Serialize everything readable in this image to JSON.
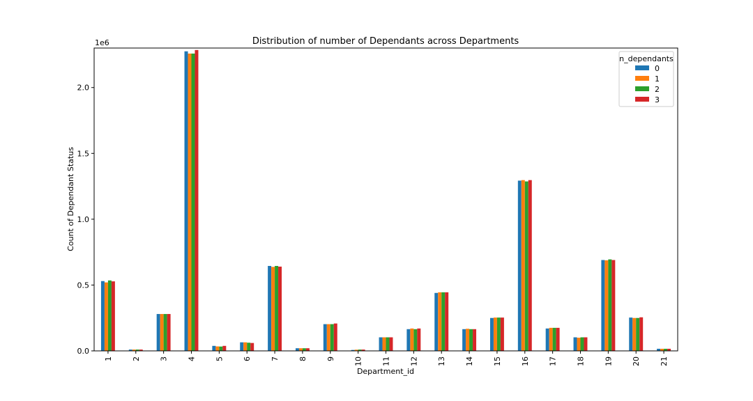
{
  "chart_data": {
    "type": "bar",
    "title": "Distribution of number of Dependants across Departments",
    "xlabel": "Department_id",
    "ylabel": "Count of Dependant Status",
    "y_scale_label": "1e6",
    "ylim": [
      0,
      2.3
    ],
    "yticks": [
      "0.0",
      "0.5",
      "1.0",
      "1.5",
      "2.0"
    ],
    "grid": false,
    "legend_position": "top-right",
    "legend_title": "n_dependants",
    "categories": [
      "1",
      "2",
      "3",
      "4",
      "5",
      "6",
      "7",
      "8",
      "9",
      "10",
      "11",
      "12",
      "13",
      "14",
      "15",
      "16",
      "17",
      "18",
      "19",
      "20",
      "21"
    ],
    "colors": [
      "#1f77b4",
      "#ff7f0e",
      "#2ca02c",
      "#d62728"
    ],
    "series": [
      {
        "name": "0",
        "values": [
          0.53,
          0.01,
          0.28,
          2.275,
          0.038,
          0.065,
          0.645,
          0.02,
          0.203,
          0.007,
          0.103,
          0.165,
          0.44,
          0.165,
          0.25,
          1.293,
          0.17,
          0.103,
          0.69,
          0.253,
          0.016
        ]
      },
      {
        "name": "1",
        "values": [
          0.52,
          0.01,
          0.28,
          2.258,
          0.034,
          0.065,
          0.638,
          0.02,
          0.203,
          0.009,
          0.103,
          0.17,
          0.445,
          0.168,
          0.253,
          1.297,
          0.175,
          0.1,
          0.688,
          0.25,
          0.016
        ]
      },
      {
        "name": "2",
        "values": [
          0.535,
          0.01,
          0.28,
          2.258,
          0.033,
          0.062,
          0.645,
          0.02,
          0.203,
          0.01,
          0.103,
          0.165,
          0.445,
          0.165,
          0.253,
          1.287,
          0.175,
          0.103,
          0.695,
          0.25,
          0.016
        ]
      },
      {
        "name": "3",
        "values": [
          0.528,
          0.01,
          0.28,
          2.285,
          0.038,
          0.06,
          0.64,
          0.02,
          0.208,
          0.01,
          0.103,
          0.17,
          0.445,
          0.165,
          0.253,
          1.297,
          0.175,
          0.103,
          0.69,
          0.255,
          0.016
        ]
      }
    ]
  }
}
